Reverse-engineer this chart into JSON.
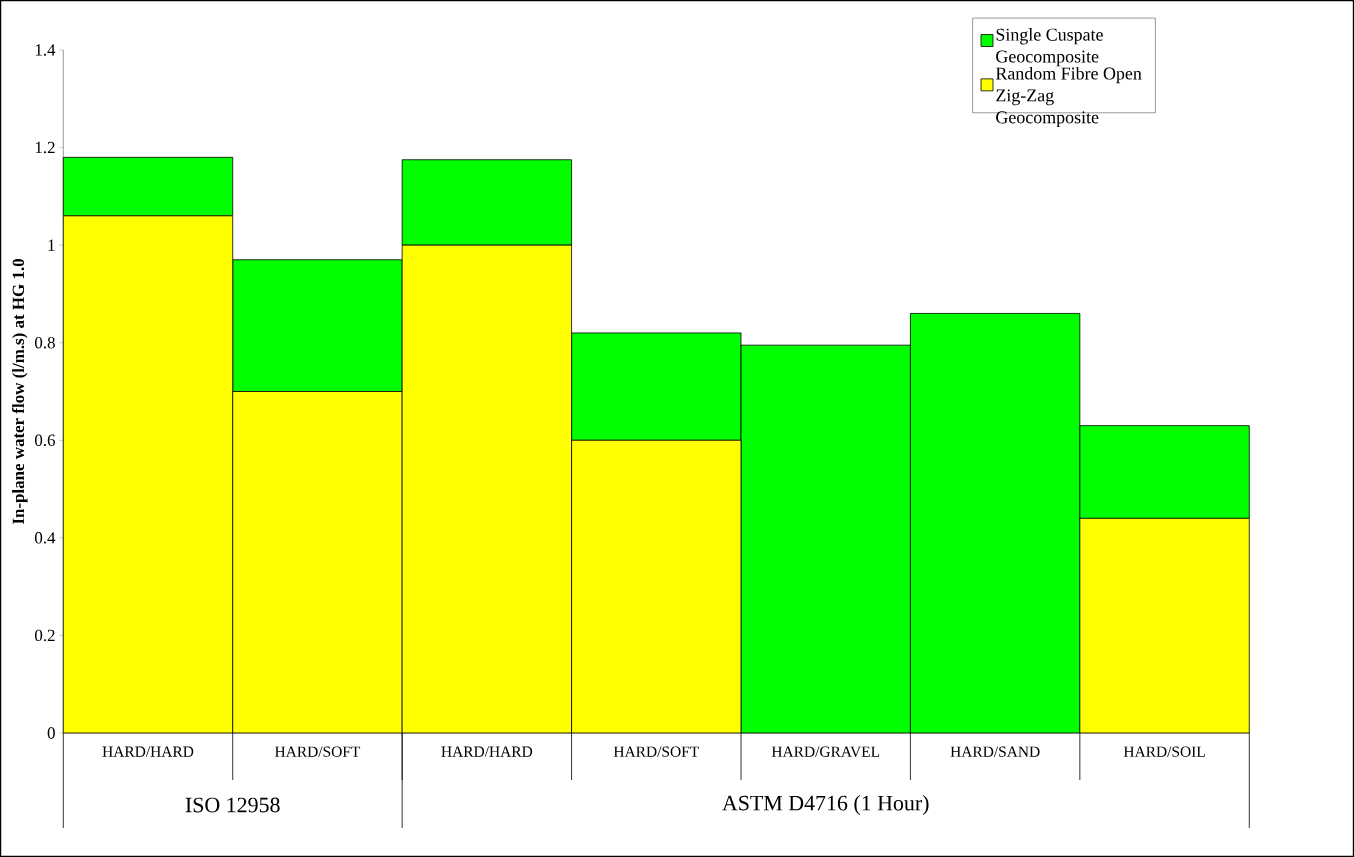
{
  "chart_data": {
    "type": "bar",
    "stacked": true,
    "ylabel": "In-plane water flow (l/m.s) at HG 1.0",
    "categories": [
      "HARD/HARD",
      "HARD/SOFT",
      "HARD/HARD",
      "HARD/SOFT",
      "HARD/GRAVEL",
      "HARD/SAND",
      "HARD/SOIL"
    ],
    "series": [
      {
        "name": "Random Fibre Open Zig-Zag Geocomposite",
        "color": "#ffff00",
        "values": [
          1.06,
          0.7,
          1.0,
          0.6,
          0,
          0,
          0.44
        ]
      },
      {
        "name": "Single Cuspate Geocomposite",
        "color": "#00ff00",
        "values": [
          0.12,
          0.27,
          0.175,
          0.22,
          0.795,
          0.86,
          0.19
        ]
      }
    ],
    "ylim": [
      0,
      1.4
    ],
    "yticks": [
      0,
      0.2,
      0.4,
      0.6,
      0.8,
      1,
      1.2,
      1.4
    ],
    "legend": "top right",
    "grid": false,
    "annotations": [
      "ISO 12958",
      "ASTM D4716 (1 Hour)"
    ]
  }
}
